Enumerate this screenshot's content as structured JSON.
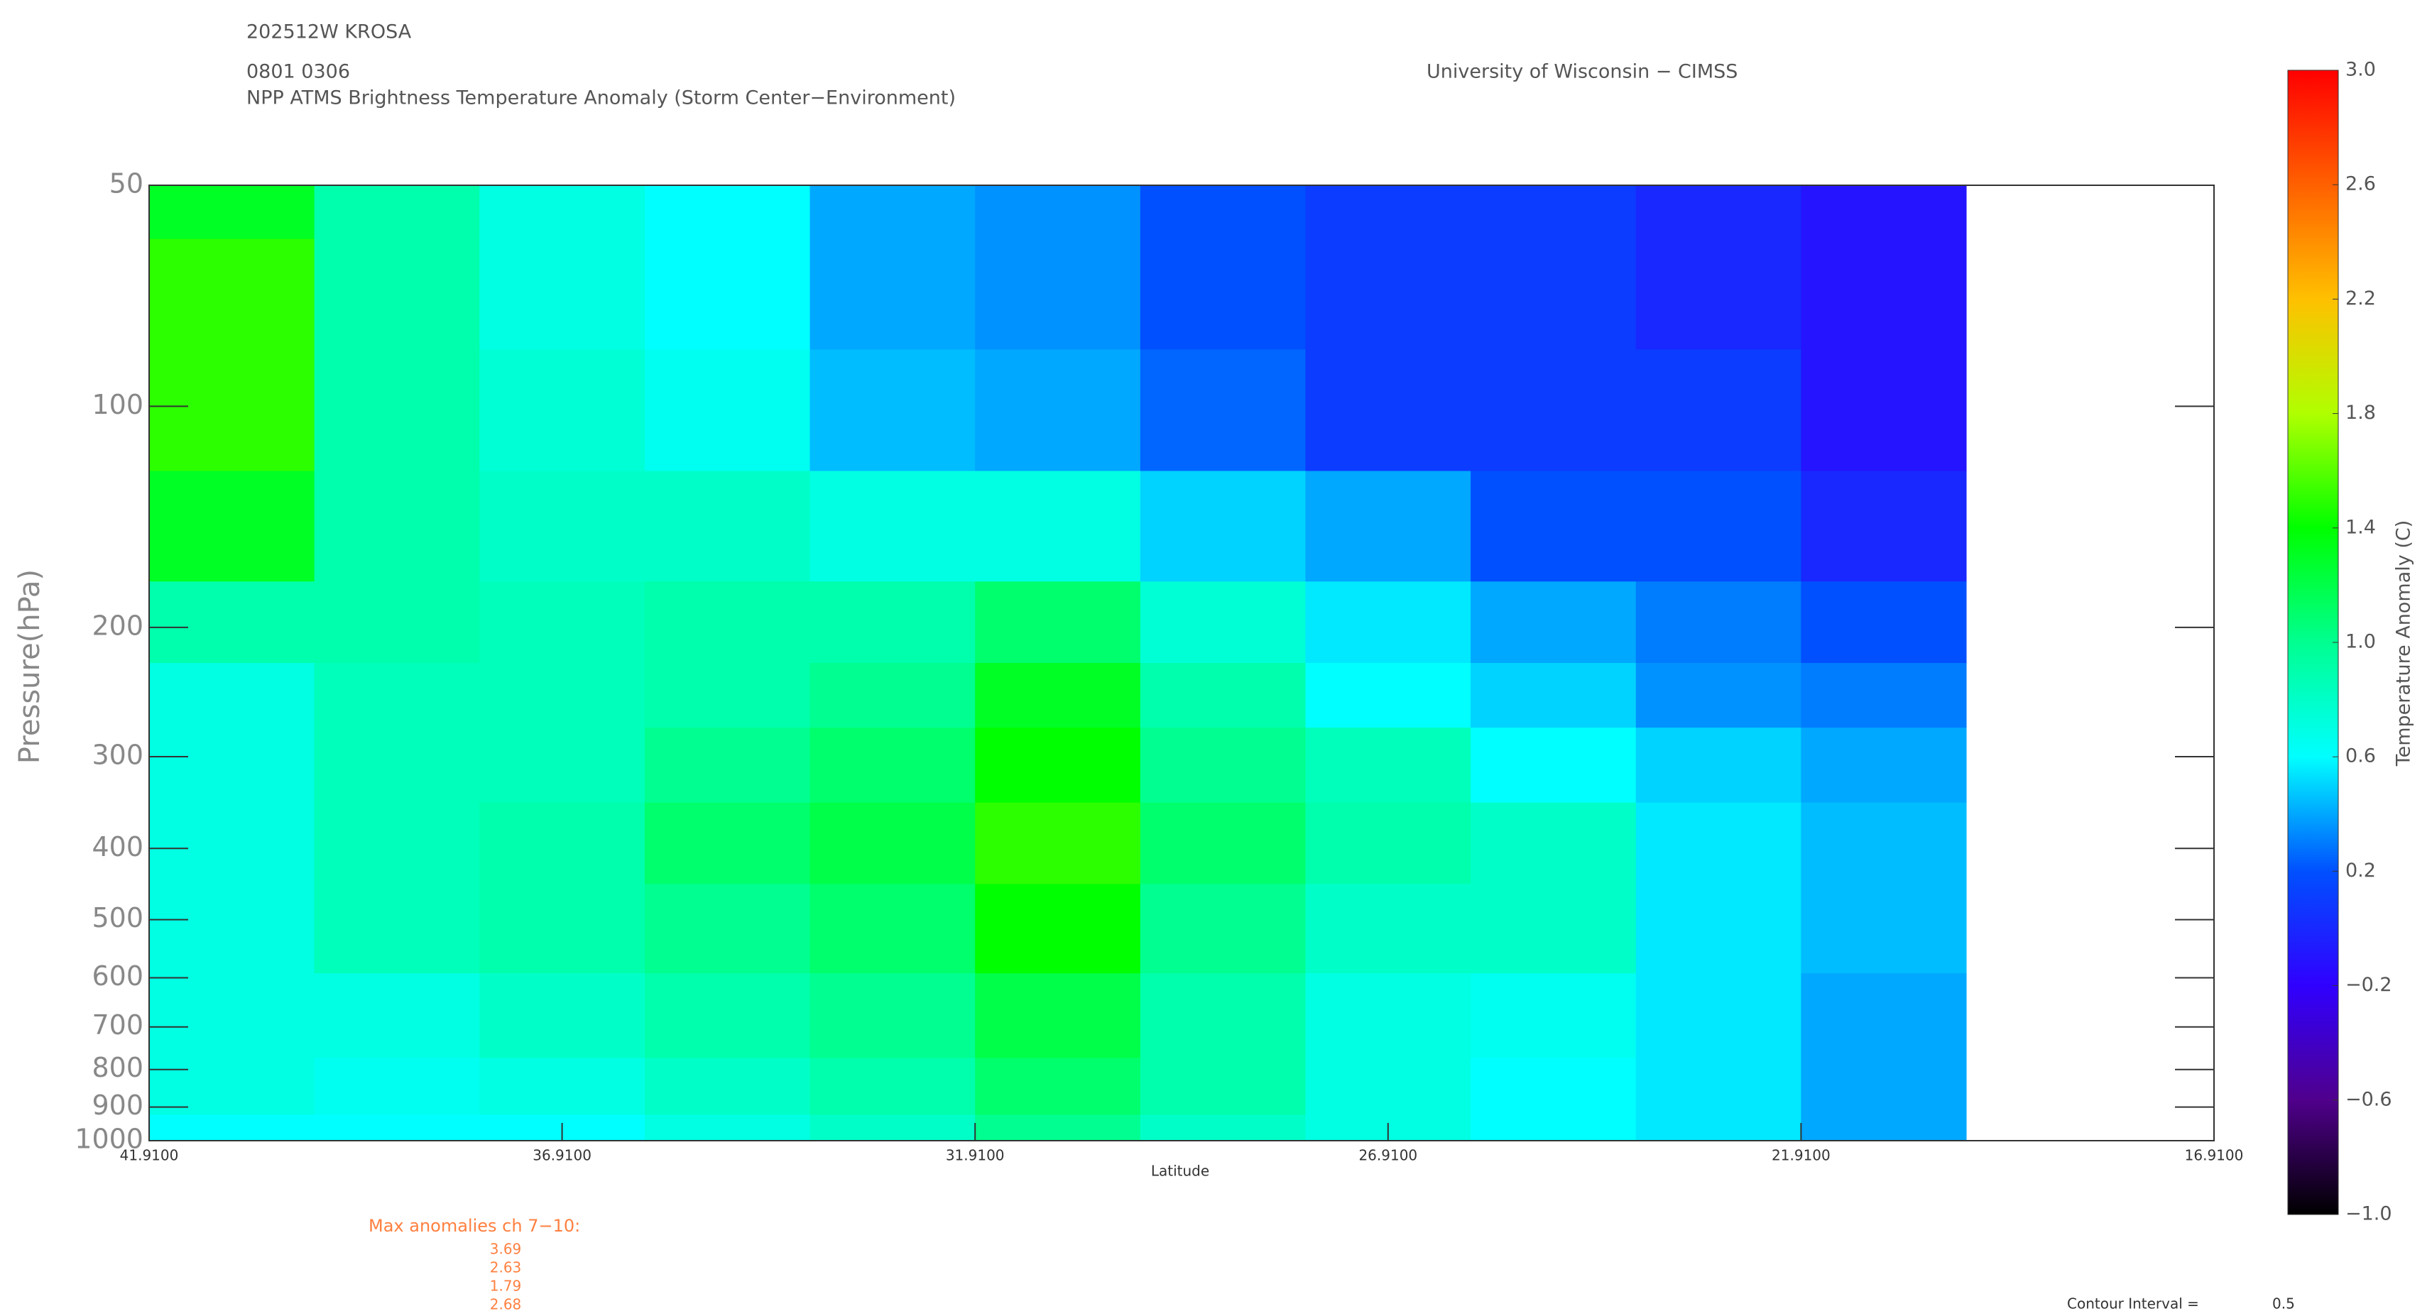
{
  "chart_data": {
    "type": "contour",
    "storm": "202512W KROSA",
    "time": "0801 0306",
    "title": "NPP ATMS Brightness Temperature Anomaly (Storm Center−Environment)",
    "source": "University of Wisconsin − CIMSS",
    "y_label": "Pressure(hPa)",
    "x_label": "Latitude",
    "colorbar_label": "Temperature Anomaly (C)",
    "x": [
      40.91,
      38.91,
      36.91,
      34.91,
      32.91,
      30.91,
      28.91,
      26.91,
      24.91,
      22.91,
      20.91
    ],
    "y": [
      50,
      70,
      100,
      150,
      200,
      250,
      300,
      400,
      500,
      700,
      850,
      1000
    ],
    "z": [
      [
        1.3,
        0.9,
        0.7,
        0.6,
        0.4,
        0.35,
        0.2,
        0.1,
        0.1,
        0.0,
        -0.1
      ],
      [
        1.5,
        0.9,
        0.7,
        0.6,
        0.4,
        0.35,
        0.2,
        0.1,
        0.1,
        0.0,
        -0.1
      ],
      [
        1.5,
        0.9,
        0.75,
        0.65,
        0.45,
        0.4,
        0.25,
        0.1,
        0.1,
        0.1,
        -0.1
      ],
      [
        1.3,
        0.9,
        0.8,
        0.8,
        0.7,
        0.7,
        0.5,
        0.4,
        0.2,
        0.2,
        0.0
      ],
      [
        0.9,
        0.9,
        0.85,
        0.9,
        0.9,
        1.1,
        0.75,
        0.55,
        0.4,
        0.3,
        0.2
      ],
      [
        0.7,
        0.85,
        0.85,
        0.9,
        1.0,
        1.3,
        0.9,
        0.6,
        0.5,
        0.35,
        0.3
      ],
      [
        0.7,
        0.85,
        0.85,
        1.0,
        1.1,
        1.4,
        1.0,
        0.85,
        0.6,
        0.5,
        0.4
      ],
      [
        0.7,
        0.85,
        0.9,
        1.1,
        1.2,
        1.5,
        1.1,
        0.9,
        0.8,
        0.55,
        0.45
      ],
      [
        0.7,
        0.85,
        0.9,
        1.0,
        1.1,
        1.4,
        1.0,
        0.8,
        0.8,
        0.55,
        0.45
      ],
      [
        0.7,
        0.7,
        0.8,
        0.9,
        1.0,
        1.2,
        0.9,
        0.7,
        0.65,
        0.55,
        0.4
      ],
      [
        0.7,
        0.65,
        0.7,
        0.8,
        0.9,
        1.1,
        0.9,
        0.7,
        0.6,
        0.55,
        0.4
      ],
      [
        0.6,
        0.6,
        0.6,
        0.7,
        0.8,
        1.0,
        0.8,
        0.7,
        0.6,
        0.55,
        0.4
      ]
    ],
    "xlim": [
      41.91,
      16.91
    ],
    "xticks": [
      {
        "value": 41.91,
        "label": "41.9100"
      },
      {
        "value": 36.91,
        "label": "36.9100"
      },
      {
        "value": 31.91,
        "label": "31.9100"
      },
      {
        "value": 26.91,
        "label": "26.9100"
      },
      {
        "value": 21.91,
        "label": "21.9100"
      },
      {
        "value": 16.91,
        "label": "16.9100"
      }
    ],
    "ylim": [
      1000,
      50
    ],
    "y_scale": "log",
    "yticks": [
      50,
      100,
      200,
      300,
      400,
      500,
      600,
      700,
      800,
      900,
      1000
    ],
    "zlim": [
      -1,
      3
    ],
    "zticks": [
      {
        "value": -1,
        "label": "−1.0"
      },
      {
        "value": -0.6,
        "label": "−0.6"
      },
      {
        "value": -0.2,
        "label": "−0.2"
      },
      0.2,
      0.6,
      {
        "value": 1,
        "label": "1.0"
      },
      1.4,
      1.8,
      2.2,
      2.6,
      {
        "value": 3,
        "label": "3.0"
      }
    ],
    "colorscale": [
      "#000000",
      "#50008c",
      "#3000ff",
      "#0050ff",
      "#00ffff",
      "#00ff90",
      "#00ff00",
      "#b0ff00",
      "#ffc000",
      "#ff6000",
      "#ff0000"
    ],
    "max_anomalies_label": "Max anomalies ch 7−10:",
    "max_anomalies": [
      3.69,
      2.63,
      1.79,
      2.68
    ],
    "contour_interval_label": "Contour Interval =",
    "contour_interval": 0.5
  }
}
